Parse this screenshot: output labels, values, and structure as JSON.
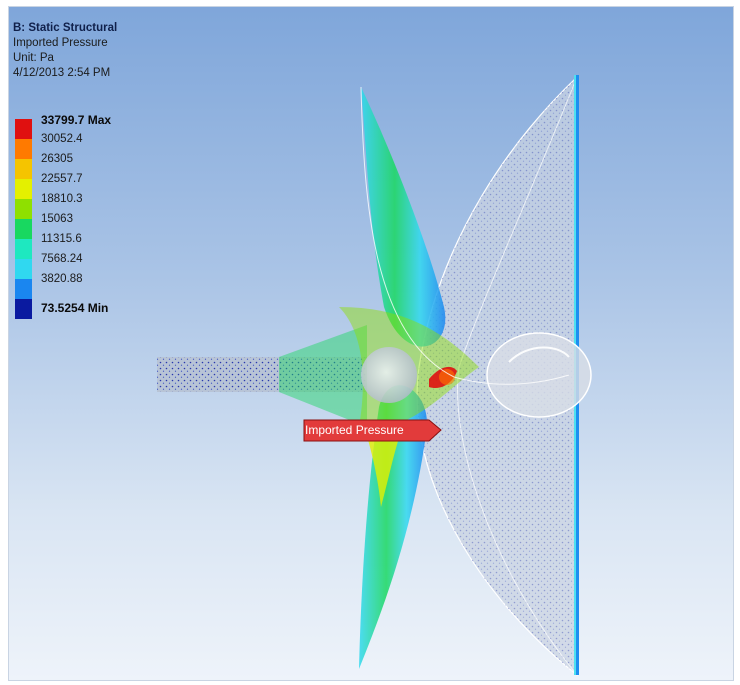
{
  "analysis": {
    "system": "B: Static Structural",
    "result_name": "Imported Pressure",
    "unit": "Unit: Pa",
    "timestamp": "4/12/2013 2:54 PM"
  },
  "legend": {
    "entries": [
      {
        "label": "33799.7 Max",
        "color": "#e01010",
        "bold": true
      },
      {
        "label": "30052.4",
        "color": "#ff7a00",
        "bold": false
      },
      {
        "label": "26305",
        "color": "#f5c400",
        "bold": false
      },
      {
        "label": "22557.7",
        "color": "#e4f000",
        "bold": false
      },
      {
        "label": "18810.3",
        "color": "#8fe000",
        "bold": false
      },
      {
        "label": "15063",
        "color": "#18d860",
        "bold": false
      },
      {
        "label": "11315.6",
        "color": "#1ee8c0",
        "bold": false
      },
      {
        "label": "7568.24",
        "color": "#30d8f0",
        "bold": false
      },
      {
        "label": "3820.88",
        "color": "#1a86f0",
        "bold": false
      },
      {
        "label": "73.5254 Min",
        "color": "#0a1aa0",
        "bold": true
      }
    ]
  },
  "probe": {
    "label": "Imported Pressure",
    "color": "#e23b3b"
  }
}
